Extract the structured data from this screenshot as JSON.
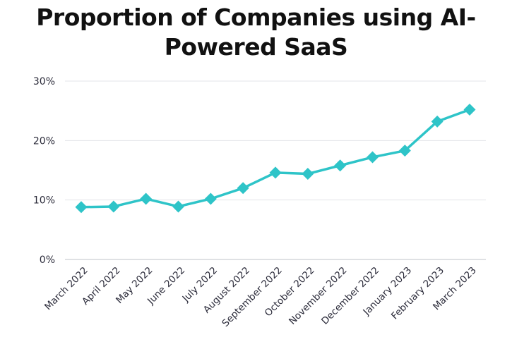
{
  "chart_data": {
    "type": "line",
    "title_lines": [
      "Proportion of Companies using AI-",
      "Powered SaaS"
    ],
    "categories": [
      "March 2022",
      "April 2022",
      "May 2022",
      "June 2022",
      "July 2022",
      "August 2022",
      "September 2022",
      "October 2022",
      "November 2022",
      "December 2022",
      "January 2023",
      "February 2023",
      "March 2023"
    ],
    "series": [
      {
        "values": [
          8.8,
          8.9,
          10.2,
          8.9,
          10.2,
          12.0,
          14.6,
          14.4,
          15.8,
          17.2,
          18.3,
          23.2,
          25.2
        ],
        "color": "#2ec4c8",
        "marker": "diamond"
      }
    ],
    "yticks": [
      "0%",
      "10%",
      "20%",
      "30%"
    ],
    "ytick_values": [
      0,
      10,
      20,
      30
    ],
    "ylim": [
      0,
      30
    ],
    "grid": true,
    "legend": "none",
    "xlabel": "",
    "ylabel": ""
  }
}
